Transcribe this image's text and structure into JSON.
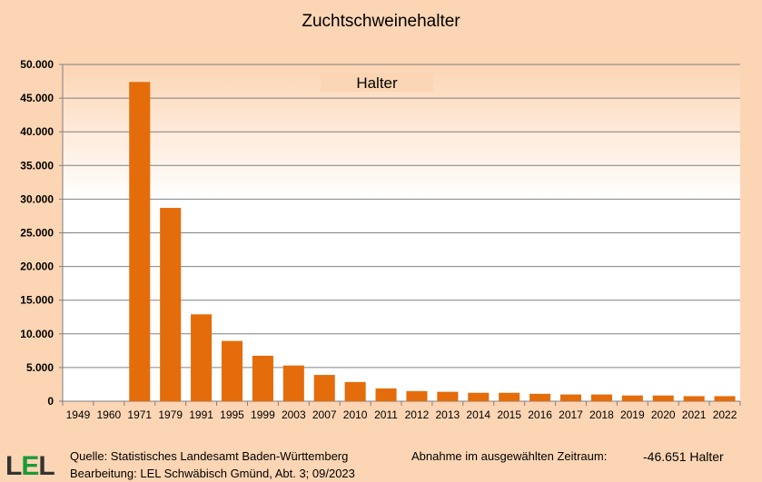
{
  "chart_data": {
    "type": "bar",
    "title": "Zuchtschweinehalter",
    "categories": [
      "1949",
      "1960",
      "1971",
      "1979",
      "1991",
      "1995",
      "1999",
      "2003",
      "2007",
      "2010",
      "2011",
      "2012",
      "2013",
      "2014",
      "2015",
      "2016",
      "2017",
      "2018",
      "2019",
      "2020",
      "2021",
      "2022"
    ],
    "series": [
      {
        "name": "Halter",
        "values": [
          0,
          0,
          47400,
          28700,
          12900,
          8950,
          6750,
          5300,
          3900,
          2850,
          1900,
          1500,
          1400,
          1250,
          1250,
          1100,
          1000,
          1000,
          850,
          850,
          750,
          750
        ]
      }
    ],
    "ylim": [
      0,
      50000
    ],
    "yticks": [
      "0",
      "5.000",
      "10.000",
      "15.000",
      "20.000",
      "25.000",
      "30.000",
      "35.000",
      "40.000",
      "45.000",
      "50.000"
    ],
    "grid": true,
    "legend": "top-center",
    "bar_color": "#e46c0a"
  },
  "footer": {
    "source": "Quelle: Statistisches Landesamt Baden-Württemberg",
    "editing": "Bearbeitung: LEL Schwäbisch Gmünd, Abt. 3; 09/2023",
    "decrease_label": "Abnahme im ausgewählten Zeitraum:",
    "decrease_value": "-46.651 Halter"
  },
  "logo": {
    "text": "LEL"
  }
}
